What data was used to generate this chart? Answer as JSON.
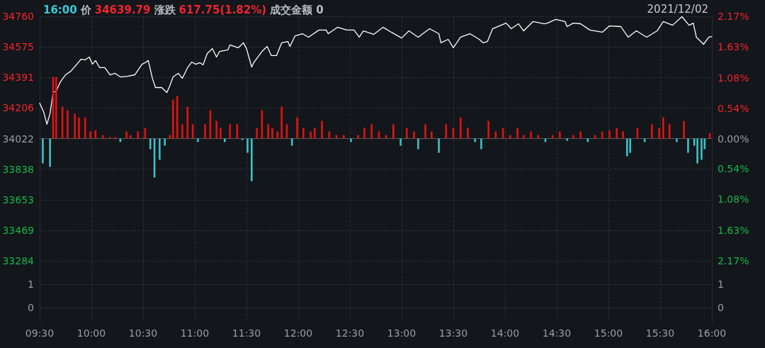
{
  "chart_data": [
    {
      "type": "line",
      "title": "16:00 价 34639.79 涨跌 617.75(1.82%) 成交金额 0",
      "subtitle": "2021/12/02",
      "xlim": [
        9.5,
        16
      ],
      "xticks": [
        {
          "value": 9.5,
          "label": null
        },
        {
          "value": 10,
          "label": null
        },
        {
          "value": 10.5,
          "label": null
        },
        {
          "value": 11,
          "label": null
        },
        {
          "value": 11.5,
          "label": null
        },
        {
          "value": 12,
          "label": null
        },
        {
          "value": 12.5,
          "label": null
        },
        {
          "value": 13,
          "label": null
        },
        {
          "value": 13.5,
          "label": null
        },
        {
          "value": 14,
          "label": null
        },
        {
          "value": 14.5,
          "label": null
        },
        {
          "value": 15,
          "label": null
        },
        {
          "value": 15.5,
          "label": null
        },
        {
          "value": 16,
          "label": null
        }
      ],
      "ylim": [
        33284,
        34760
      ],
      "yticks": [
        33284,
        33469,
        33653,
        33838,
        34022,
        34206,
        34391,
        34575,
        34760
      ],
      "y2lim": [
        -2.17,
        2.17
      ],
      "y2ticks": [
        {
          "value": -2.17,
          "label": "2.17%"
        },
        {
          "value": -1.63,
          "label": "1.63%"
        },
        {
          "value": -1.08,
          "label": "1.08%"
        },
        {
          "value": -0.54,
          "label": "0.54%"
        },
        {
          "value": 0,
          "label": "0.00%"
        },
        {
          "value": 0.54,
          "label": "0.54%"
        },
        {
          "value": 1.08,
          "label": "1.08%"
        },
        {
          "value": 1.63,
          "label": "1.63%"
        },
        {
          "value": 2.17,
          "label": "2.17%"
        }
      ],
      "tick_labels": "y",
      "grid": true,
      "marker": "none",
      "line_style": "solid",
      "ref_lines": [
        {
          "axis": "y",
          "value": 34022,
          "label": null,
          "color": "#555a60"
        }
      ],
      "series": [
        {
          "color": "#ffffff",
          "x": [
            9.5,
            9.54,
            9.57,
            9.6,
            9.63,
            9.66,
            9.7,
            9.75,
            9.8,
            9.86,
            9.9,
            9.94,
            9.98,
            10.01,
            10.04,
            10.08,
            10.13,
            10.18,
            10.23,
            10.28,
            10.35,
            10.42,
            10.49,
            10.52,
            10.55,
            10.59,
            10.62,
            10.68,
            10.73,
            10.76,
            10.79,
            10.84,
            10.88,
            10.93,
            10.97,
            11.01,
            11.05,
            11.08,
            11.12,
            11.17,
            11.21,
            11.24,
            11.32,
            11.34,
            11.42,
            11.47,
            11.5,
            11.55,
            11.57,
            11.65,
            11.7,
            11.74,
            11.79,
            11.84,
            11.9,
            11.92,
            11.97,
            12.04,
            12.1,
            12.2,
            12.27,
            12.29,
            12.38,
            12.47,
            12.54,
            12.59,
            12.63,
            12.73,
            12.82,
            12.9,
            13,
            13.07,
            13.16,
            13.27,
            13.36,
            13.38,
            13.45,
            13.5,
            13.57,
            13.66,
            13.75,
            13.79,
            13.83,
            13.88,
            13.96,
            14.01,
            14.06,
            14.13,
            14.18,
            14.27,
            14.38,
            14.41,
            14.49,
            14.58,
            14.6,
            14.66,
            14.73,
            14.82,
            14.94,
            15.01,
            15.12,
            15.19,
            15.27,
            15.37,
            15.47,
            15.53,
            15.62,
            15.71,
            15.78,
            15.82,
            15.85,
            15.92,
            15.97,
            16
          ],
          "values": [
            34236,
            34180,
            34108,
            34172,
            34300,
            34309,
            34364,
            34407,
            34428,
            34471,
            34501,
            34497,
            34514,
            34471,
            34493,
            34450,
            34450,
            34407,
            34416,
            34394,
            34398,
            34407,
            34471,
            34480,
            34493,
            34386,
            34330,
            34330,
            34300,
            34343,
            34394,
            34416,
            34386,
            34450,
            34484,
            34471,
            34480,
            34467,
            34535,
            34565,
            34514,
            34548,
            34557,
            34587,
            34570,
            34600,
            34565,
            34454,
            34480,
            34548,
            34578,
            34523,
            34523,
            34600,
            34608,
            34578,
            34642,
            34655,
            34634,
            34677,
            34677,
            34655,
            34694,
            34677,
            34677,
            34634,
            34672,
            34651,
            34694,
            34664,
            34629,
            34672,
            34634,
            34685,
            34655,
            34600,
            34621,
            34570,
            34634,
            34655,
            34621,
            34600,
            34608,
            34685,
            34706,
            34719,
            34685,
            34715,
            34672,
            34728,
            34715,
            34719,
            34741,
            34728,
            34698,
            34719,
            34715,
            34677,
            34664,
            34702,
            34698,
            34634,
            34672,
            34634,
            34672,
            34728,
            34706,
            34758,
            34706,
            34719,
            34634,
            34591,
            34634,
            34638
          ]
        },
        {
          "type": "bar",
          "color": "#e3130f",
          "x": [
            9.63,
            9.66,
            9.72,
            9.77,
            9.84,
            9.88,
            9.94,
            9.99,
            10.04,
            10.11,
            10.18,
            10.23,
            10.34,
            10.38,
            10.45,
            10.52,
            10.76,
            10.79,
            10.83,
            10.88,
            10.93,
            10.98,
            11.1,
            11.15,
            11.21,
            11.25,
            11.34,
            11.41,
            11.6,
            11.65,
            11.71,
            11.75,
            11.8,
            11.84,
            11.89,
            11.99,
            12.05,
            12.12,
            12.16,
            12.23,
            12.3,
            12.37,
            12.44,
            12.58,
            12.64,
            12.71,
            12.78,
            12.85,
            12.92,
            13.05,
            13.12,
            13.23,
            13.29,
            13.43,
            13.5,
            13.57,
            13.64,
            13.84,
            13.91,
            13.98,
            14.05,
            14.12,
            14.18,
            14.25,
            14.32,
            14.46,
            14.53,
            14.66,
            14.73,
            14.87,
            14.94,
            15.01,
            15.08,
            15.14,
            15.28,
            15.42,
            15.49,
            15.53,
            15.59,
            15.73,
            15.98
          ],
          "values": [
            372,
            372,
            193,
            171,
            150,
            128,
            128,
            43,
            51,
            21,
            9,
            9,
            43,
            21,
            43,
            64,
            21,
            235,
            257,
            86,
            193,
            86,
            86,
            171,
            107,
            64,
            86,
            86,
            64,
            171,
            86,
            64,
            43,
            193,
            86,
            128,
            64,
            43,
            64,
            107,
            43,
            21,
            21,
            21,
            64,
            86,
            43,
            21,
            86,
            64,
            43,
            86,
            43,
            86,
            64,
            128,
            64,
            107,
            43,
            64,
            21,
            64,
            21,
            43,
            21,
            21,
            43,
            21,
            43,
            21,
            43,
            51,
            64,
            43,
            64,
            86,
            64,
            128,
            86,
            107,
            34
          ],
          "base": [
            34022,
            34022,
            34022,
            34022,
            34022,
            34022,
            34022,
            34022,
            34022,
            34022,
            34022,
            34022,
            34022,
            34022,
            34022,
            34022,
            34022,
            34022,
            34022,
            34022,
            34022,
            34022,
            34022,
            34022,
            34022,
            34022,
            34022,
            34022,
            34022,
            34022,
            34022,
            34022,
            34022,
            34022,
            34022,
            34022,
            34022,
            34022,
            34022,
            34022,
            34022,
            34022,
            34022,
            34022,
            34022,
            34022,
            34022,
            34022,
            34022,
            34022,
            34022,
            34022,
            34022,
            34022,
            34022,
            34022,
            34022,
            34022,
            34022,
            34022,
            34022,
            34022,
            34022,
            34022,
            34022,
            34022,
            34022,
            34022,
            34022,
            34022,
            34022,
            34022,
            34022,
            34022,
            34022,
            34022,
            34022,
            34022,
            34022,
            34022,
            34022
          ]
        },
        {
          "type": "bar",
          "color": "#3cc3c8",
          "x": [
            9.53,
            9.6,
            10.28,
            10.57,
            10.61,
            10.66,
            10.71,
            11.03,
            11.29,
            11.46,
            11.51,
            11.55,
            11.94,
            12.51,
            12.99,
            13.16,
            13.36,
            13.71,
            13.77,
            14.39,
            14.6,
            14.8,
            15.18,
            15.21,
            15.35,
            15.66,
            15.77,
            15.83,
            15.86,
            15.9,
            15.93
          ],
          "values": [
            -150,
            -171,
            -21,
            -64,
            -235,
            -128,
            -43,
            -21,
            -21,
            -9,
            -86,
            -257,
            -43,
            -21,
            -43,
            -64,
            -86,
            -21,
            -64,
            -21,
            -13,
            -21,
            -107,
            -86,
            -21,
            -21,
            -86,
            -43,
            -150,
            -128,
            -64
          ],
          "base": [
            34022,
            34022,
            34022,
            34022,
            34022,
            34022,
            34022,
            34022,
            34022,
            34022,
            34022,
            34022,
            34022,
            34022,
            34022,
            34022,
            34022,
            34022,
            34022,
            34022,
            34022,
            34022,
            34022,
            34022,
            34022,
            34022,
            34022,
            34022,
            34022,
            34022,
            34022
          ]
        }
      ]
    },
    {
      "type": "bar",
      "xlim": [
        9.5,
        16
      ],
      "xticks": [
        {
          "value": 9.5,
          "label": "09:30"
        },
        {
          "value": 10,
          "label": "10:00"
        },
        {
          "value": 10.5,
          "label": "10:30"
        },
        {
          "value": 11,
          "label": "11:00"
        },
        {
          "value": 11.5,
          "label": "11:30"
        },
        {
          "value": 12,
          "label": "12:00"
        },
        {
          "value": 12.5,
          "label": "12:30"
        },
        {
          "value": 13,
          "label": "13:00"
        },
        {
          "value": 13.5,
          "label": "13:30"
        },
        {
          "value": 14,
          "label": "14:00"
        },
        {
          "value": 14.5,
          "label": "14:30"
        },
        {
          "value": 15,
          "label": "15:00"
        },
        {
          "value": 15.5,
          "label": "15:30"
        },
        {
          "value": 16,
          "label": "16:00"
        }
      ],
      "ylim": [
        -0.64,
        1.94
      ],
      "yticks": [
        0,
        1
      ],
      "y2lim": [
        -0.64,
        1.94
      ],
      "y2ticks": [
        0,
        1
      ],
      "grid": true
    }
  ]
}
